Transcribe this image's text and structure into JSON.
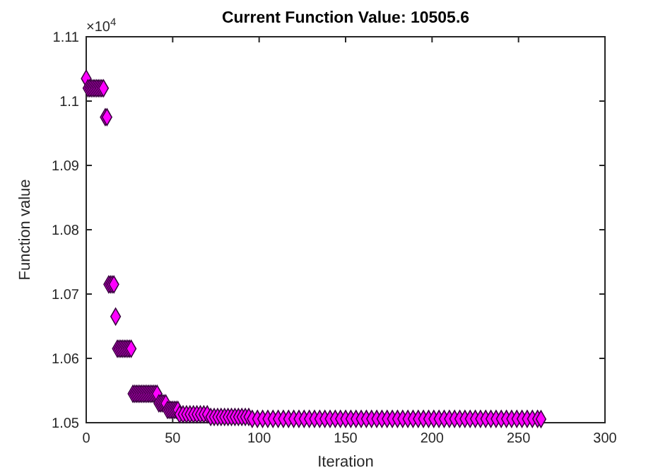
{
  "chart_data": {
    "type": "scatter",
    "title": "Current Function Value: 10505.6",
    "xlabel": "Iteration",
    "ylabel": "Function value",
    "annotations": [
      "×10$^{4}$"
    ],
    "xlim": [
      0,
      300
    ],
    "xticks": [
      0,
      50,
      100,
      150,
      200,
      250,
      300
    ],
    "ylim": [
      1.05,
      1.11
    ],
    "yticks": [
      1.05,
      1.06,
      1.07,
      1.08,
      1.09,
      1.1,
      1.11
    ],
    "grid": false,
    "marker": "diamond",
    "series": [
      {
        "color": "#ff00ff",
        "x": [
          0,
          1,
          2,
          3,
          4,
          5,
          6,
          7,
          8,
          9,
          10,
          11,
          12,
          13,
          14,
          15,
          16,
          17,
          18,
          19,
          20,
          21,
          22,
          23,
          24,
          25,
          26,
          27,
          28,
          29,
          30,
          31,
          32,
          33,
          34,
          35,
          36,
          37,
          38,
          39,
          40,
          41,
          42,
          43,
          44,
          45,
          46,
          47,
          48,
          49,
          50,
          51,
          52,
          53,
          54,
          56,
          58,
          60,
          62,
          64,
          66,
          68,
          70,
          72,
          74,
          76,
          78,
          80,
          82,
          84,
          86,
          88,
          90,
          92,
          94,
          96,
          99,
          102,
          105,
          108,
          111,
          114,
          117,
          120,
          123,
          126,
          129,
          132,
          135,
          138,
          141,
          144,
          147,
          150,
          153,
          156,
          159,
          162,
          165,
          168,
          171,
          174,
          177,
          180,
          183,
          186,
          189,
          192,
          195,
          198,
          201,
          204,
          207,
          210,
          213,
          216,
          219,
          222,
          225,
          228,
          231,
          234,
          237,
          240,
          243,
          246,
          249,
          252,
          255,
          258,
          261,
          263
        ],
        "values": [
          1.1035,
          1.102,
          1.102,
          1.102,
          1.102,
          1.102,
          1.102,
          1.102,
          1.102,
          1.102,
          1.102,
          1.0975,
          1.0975,
          1.0715,
          1.0715,
          1.0715,
          1.0715,
          1.0665,
          1.0615,
          1.0615,
          1.0615,
          1.0615,
          1.0615,
          1.0615,
          1.0615,
          1.0615,
          1.0615,
          1.0545,
          1.0545,
          1.0545,
          1.0545,
          1.0545,
          1.0545,
          1.0545,
          1.0545,
          1.0545,
          1.0545,
          1.0545,
          1.0545,
          1.0545,
          1.0545,
          1.0545,
          1.053,
          1.053,
          1.053,
          1.053,
          1.053,
          1.052,
          1.052,
          1.052,
          1.052,
          1.052,
          1.052,
          1.052,
          1.0513,
          1.0513,
          1.0513,
          1.0513,
          1.0513,
          1.0513,
          1.0513,
          1.0513,
          1.0513,
          1.0509,
          1.0509,
          1.0509,
          1.0509,
          1.0509,
          1.0509,
          1.0509,
          1.0509,
          1.0509,
          1.0509,
          1.0509,
          1.0509,
          1.0506,
          1.0506,
          1.0506,
          1.0506,
          1.0506,
          1.0506,
          1.0506,
          1.0506,
          1.0506,
          1.0506,
          1.0506,
          1.0506,
          1.0506,
          1.0506,
          1.0506,
          1.0506,
          1.0506,
          1.0506,
          1.0506,
          1.0506,
          1.0506,
          1.0506,
          1.0506,
          1.0506,
          1.0506,
          1.0506,
          1.0506,
          1.0506,
          1.0506,
          1.0506,
          1.0506,
          1.0506,
          1.0506,
          1.0506,
          1.0506,
          1.0506,
          1.0506,
          1.0506,
          1.0506,
          1.0506,
          1.0506,
          1.0506,
          1.0506,
          1.0506,
          1.0506,
          1.0506,
          1.0506,
          1.0506,
          1.0506,
          1.0506,
          1.0506,
          1.0506,
          1.0506,
          1.0506,
          1.0506,
          1.0506,
          1.05056
        ]
      }
    ]
  }
}
